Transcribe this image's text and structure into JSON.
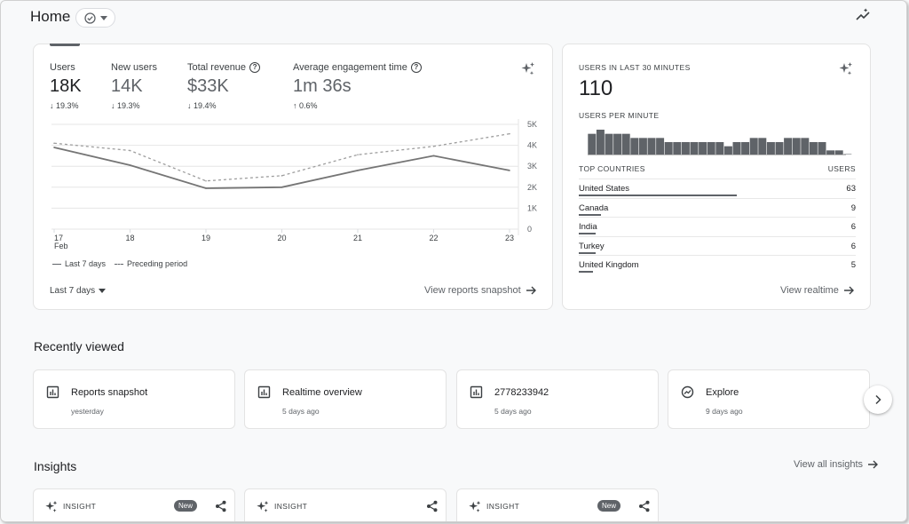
{
  "header": {
    "title": "Home"
  },
  "overview": {
    "metrics": [
      {
        "label": "Users",
        "value": "18K",
        "change": "19.3%",
        "direction": "down",
        "help": false,
        "active": true
      },
      {
        "label": "New users",
        "value": "14K",
        "change": "19.3%",
        "direction": "down",
        "help": false,
        "active": false
      },
      {
        "label": "Total revenue",
        "value": "$33K",
        "change": "19.4%",
        "direction": "down",
        "help": true,
        "active": false
      },
      {
        "label": "Average engagement time",
        "value": "1m 36s",
        "change": "0.6%",
        "direction": "up",
        "help": true,
        "active": false
      }
    ],
    "legend": {
      "current": "Last 7 days",
      "previous": "Preceding period"
    },
    "range_label": "Last 7 days",
    "link_label": "View reports snapshot",
    "x_month_label": "Feb"
  },
  "chart_data": {
    "type": "line",
    "x": [
      "17",
      "18",
      "19",
      "20",
      "21",
      "22",
      "23"
    ],
    "x_sublabels": [
      "Feb",
      "",
      "",
      "",
      "",
      "",
      ""
    ],
    "series": [
      {
        "name": "Last 7 days",
        "values": [
          3900,
          3050,
          1950,
          2000,
          2800,
          3500,
          2800
        ]
      },
      {
        "name": "Preceding period",
        "values": [
          4100,
          3750,
          2300,
          2550,
          3550,
          3950,
          4550
        ]
      }
    ],
    "y_ticks": [
      0,
      1000,
      2000,
      3000,
      4000,
      5000
    ],
    "y_tick_labels": [
      "0",
      "1K",
      "2K",
      "3K",
      "4K",
      "5K"
    ],
    "ylim": [
      0,
      5000
    ],
    "grid": true,
    "y_axis_side": "right",
    "legend_placement": "bottom-left"
  },
  "realtime": {
    "heading": "USERS IN LAST 30 MINUTES",
    "value": "110",
    "per_minute_label": "USERS PER MINUTE",
    "per_minute": [
      5,
      6,
      5,
      5,
      5,
      4,
      4,
      4,
      4,
      3,
      3,
      3,
      3,
      3,
      3,
      3,
      2,
      3,
      3,
      4,
      4,
      3,
      3,
      4,
      4,
      4,
      3,
      3,
      1,
      1,
      0
    ],
    "countries_label": "TOP COUNTRIES",
    "users_label": "USERS",
    "countries": [
      {
        "name": "United States",
        "count": "63",
        "share": 0.57
      },
      {
        "name": "Canada",
        "count": "9",
        "share": 0.08
      },
      {
        "name": "India",
        "count": "6",
        "share": 0.06
      },
      {
        "name": "Turkey",
        "count": "6",
        "share": 0.06
      },
      {
        "name": "United Kingdom",
        "count": "5",
        "share": 0.05
      }
    ],
    "link_label": "View realtime"
  },
  "recently_viewed": {
    "title": "Recently viewed",
    "items": [
      {
        "title": "Reports snapshot",
        "subtitle": "yesterday",
        "icon": "report-icon"
      },
      {
        "title": "Realtime overview",
        "subtitle": "5 days ago",
        "icon": "report-icon"
      },
      {
        "title": "2778233942",
        "subtitle": "5 days ago",
        "icon": "report-icon"
      },
      {
        "title": "Explore",
        "subtitle": "9 days ago",
        "icon": "explore-icon"
      }
    ]
  },
  "insights": {
    "title": "Insights",
    "link_label": "View all insights",
    "cards": [
      {
        "label": "INSIGHT",
        "badge": "New"
      },
      {
        "label": "INSIGHT",
        "badge": ""
      },
      {
        "label": "INSIGHT",
        "badge": "New"
      }
    ]
  }
}
